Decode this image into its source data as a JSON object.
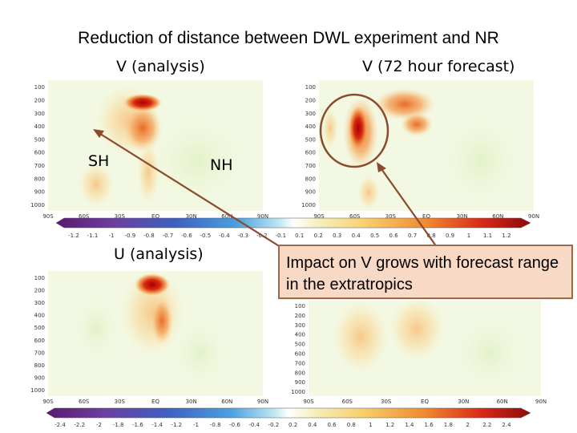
{
  "title": "Reduction of distance between DWL experiment and NR",
  "panels": {
    "v_analysis": "V  (analysis)",
    "v_forecast": "V (72 hour forecast)",
    "u_analysis": "U  (analysis)"
  },
  "regions": {
    "sh": "SH",
    "nh": "NH"
  },
  "callout": "Impact on V grows with forecast range in the extratropics",
  "chart_data": [
    {
      "type": "heatmap",
      "title": "V  (analysis)",
      "x_ticks": [
        "90S",
        "60S",
        "30S",
        "EQ",
        "30N",
        "60N",
        "90N"
      ],
      "y_ticks": [
        "100",
        "200",
        "300",
        "400",
        "500",
        "600",
        "700",
        "800",
        "900",
        "1000"
      ],
      "ylim": [
        1000,
        100
      ],
      "colorbar": [
        "-1.2",
        "-1.1",
        "-1",
        "-0.9",
        "-0.8",
        "-0.7",
        "-0.6",
        "-0.5",
        "-0.4",
        "-0.3",
        "-0.2",
        "-0.1",
        "0.1",
        "0.2",
        "0.3",
        "0.4",
        "0.5",
        "0.6",
        "0.7",
        "0.8",
        "0.9",
        "1",
        "1.1",
        "1.2"
      ]
    },
    {
      "type": "heatmap",
      "title": "V (72 hour forecast)",
      "x_ticks": [
        "90S",
        "60S",
        "30S",
        "EQ",
        "30N",
        "60N",
        "90N"
      ],
      "y_ticks": [
        "100",
        "200",
        "300",
        "400",
        "500",
        "600",
        "700",
        "800",
        "900",
        "1000"
      ],
      "ylim": [
        1000,
        100
      ]
    },
    {
      "type": "heatmap",
      "title": "U  (analysis)",
      "x_ticks": [
        "90S",
        "60S",
        "30S",
        "EQ",
        "30N",
        "60N",
        "90N"
      ],
      "y_ticks": [
        "100",
        "200",
        "300",
        "400",
        "500",
        "600",
        "700",
        "800",
        "900",
        "1000"
      ],
      "ylim": [
        1000,
        100
      ],
      "colorbar": [
        "-2.4",
        "-2.2",
        "-2",
        "-1.8",
        "-1.6",
        "-1.4",
        "-1.2",
        "-1",
        "-0.8",
        "-0.6",
        "-0.4",
        "-0.2",
        "0.2",
        "0.4",
        "0.6",
        "0.8",
        "1",
        "1.2",
        "1.4",
        "1.6",
        "1.8",
        "2",
        "2.2",
        "2.4"
      ]
    },
    {
      "type": "heatmap",
      "title": "",
      "x_ticks": [
        "90S",
        "60S",
        "30S",
        "EQ",
        "30N",
        "60N",
        "90N"
      ],
      "y_ticks": [
        "100",
        "200",
        "300",
        "400",
        "500",
        "600",
        "700",
        "800",
        "900",
        "1000"
      ],
      "ylim": [
        1000,
        100
      ]
    }
  ]
}
